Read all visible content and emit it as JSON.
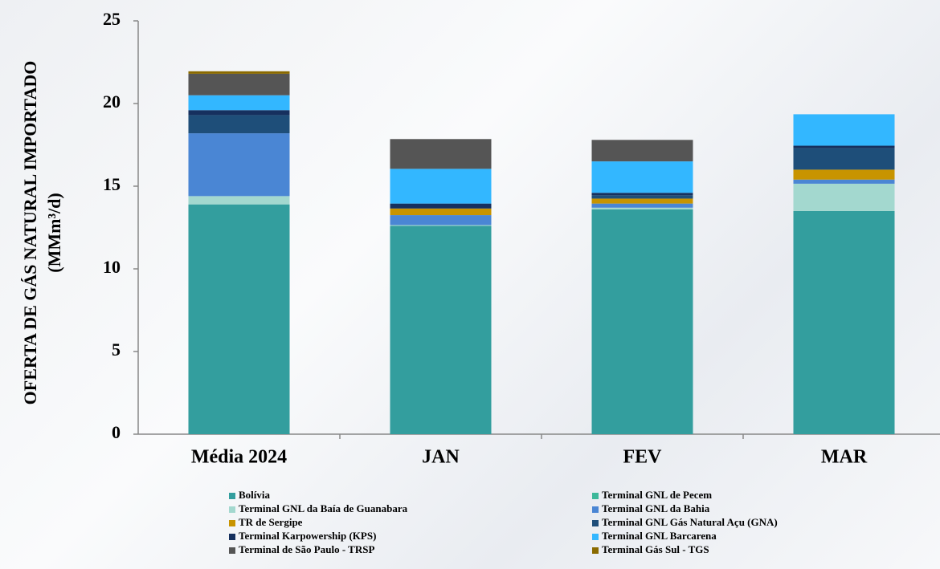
{
  "chart_data": {
    "type": "stacked_bar",
    "y_label": [
      "OFERTA DE GÁS NATURAL IMPORTADO",
      "(MMm³/d)"
    ],
    "categories": [
      "Média 2024",
      "JAN",
      "FEV",
      "MAR"
    ],
    "ylim": [
      0,
      25
    ],
    "yticks": [
      0,
      5,
      10,
      15,
      20,
      25
    ],
    "grid": false,
    "series": [
      {
        "name": "Bolívia",
        "color": "#339e9e",
        "values": [
          13.9,
          12.6,
          13.6,
          13.5
        ]
      },
      {
        "name": "Terminal GNL de Pecem",
        "color": "#3cb89a",
        "values": [
          0,
          0,
          0,
          0
        ]
      },
      {
        "name": "Terminal GNL da Baía de Guanabara",
        "color": "#a3d8cf",
        "values": [
          0.5,
          0.05,
          0.1,
          1.65
        ]
      },
      {
        "name": "Terminal GNL da Bahia",
        "color": "#4a86d4",
        "values": [
          3.8,
          0.6,
          0.25,
          0.25
        ]
      },
      {
        "name": "TR de Sergipe",
        "color": "#c89400",
        "values": [
          0,
          0.4,
          0.3,
          0.6
        ]
      },
      {
        "name": "Terminal GNL Gás Natural Açu (GNA)",
        "color": "#1e4e79",
        "values": [
          1.1,
          0,
          0.2,
          1.3
        ]
      },
      {
        "name": "Terminal Karpowership (KPS)",
        "color": "#16305e",
        "values": [
          0.3,
          0.3,
          0.15,
          0.15
        ]
      },
      {
        "name": "Terminal GNL Barcarena",
        "color": "#33b7ff",
        "values": [
          0.9,
          2.1,
          1.9,
          1.9
        ]
      },
      {
        "name": "Terminal de São Paulo - TRSP",
        "color": "#555555",
        "values": [
          1.3,
          1.8,
          1.3,
          0
        ]
      },
      {
        "name": "Terminal Gás Sul - TGS",
        "color": "#8a6a00",
        "values": [
          0.15,
          0,
          0,
          0
        ]
      }
    ]
  }
}
